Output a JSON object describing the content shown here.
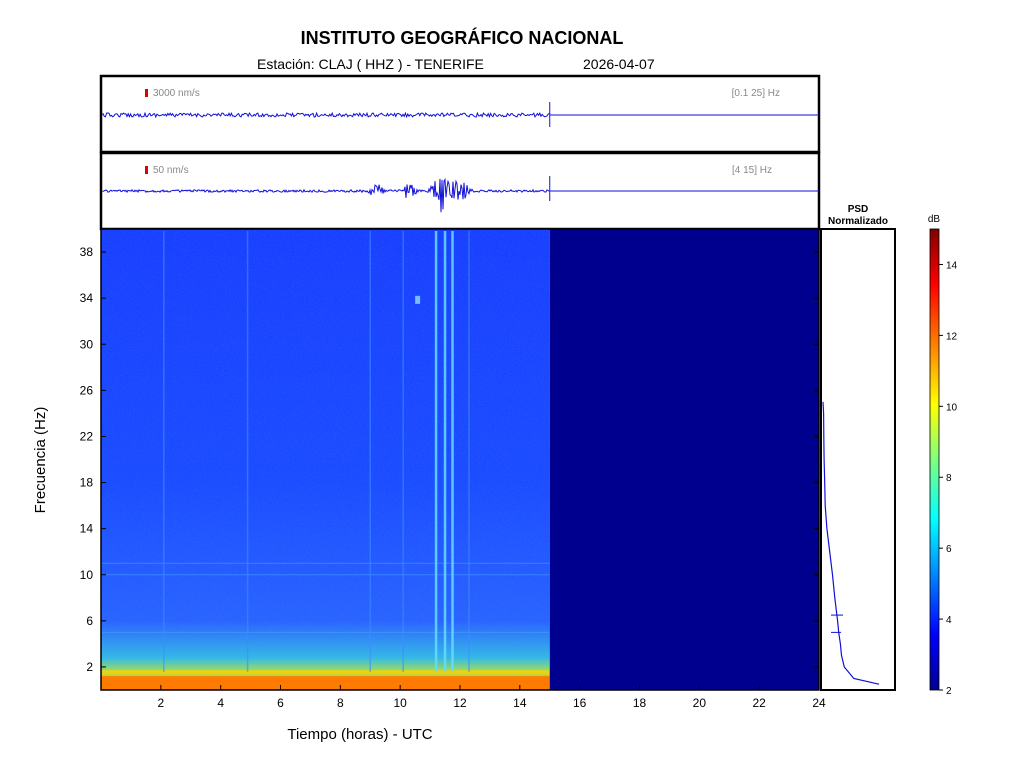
{
  "header": {
    "institution": "INSTITUTO GEOGRÁFICO NACIONAL",
    "station_label": "Estación:  CLAJ ( HHZ ) - TENERIFE",
    "date": "2026-04-07"
  },
  "chart_data": [
    {
      "type": "line",
      "panel": "broadband-seismogram",
      "scale_label": "3000 nm/s",
      "band_label": "[0.1 25] Hz",
      "x": [
        0,
        15
      ],
      "trace": "low-amplitude steady noise; recording ends at 15 h UTC",
      "data_end_hour": 15,
      "xlim": [
        0,
        24
      ]
    },
    {
      "type": "line",
      "panel": "filtered-seismogram",
      "scale_label": "50 nm/s",
      "band_label": "[4 15] Hz",
      "bursts_hours": [
        9.2,
        10.3,
        11.2,
        11.5,
        11.8,
        12.1
      ],
      "peak_hour": 11.4,
      "data_end_hour": 15,
      "xlim": [
        0,
        24
      ]
    },
    {
      "type": "heatmap",
      "panel": "spectrogram",
      "xlabel": "Tiempo (horas) - UTC",
      "ylabel": "Frecuencia  (Hz)",
      "xlim": [
        0,
        24
      ],
      "ylim": [
        0,
        40
      ],
      "x_ticks": [
        "2",
        "4",
        "6",
        "8",
        "10",
        "12",
        "14",
        "16",
        "18",
        "20",
        "22",
        "24"
      ],
      "y_ticks": [
        "2",
        "6",
        "10",
        "14",
        "18",
        "22",
        "26",
        "30",
        "34",
        "38"
      ],
      "data_end_hour": 15,
      "background_db": 4,
      "low_freq_band_hz": [
        0,
        1.2
      ],
      "low_freq_db": 12,
      "vertical_events_hours": [
        2.1,
        4.9,
        9.0,
        10.1,
        11.2,
        11.5,
        11.75,
        12.3
      ],
      "colorscale": [
        "#00008f",
        "#0000ff",
        "#0080ff",
        "#00ffff",
        "#80ff80",
        "#ffff00",
        "#ff8000",
        "#ff0000",
        "#800000"
      ]
    },
    {
      "type": "line",
      "panel": "normalized-psd",
      "title": "PSD\nNormalizado",
      "title_line1": "PSD",
      "title_line2": "Normalizado",
      "freq_hz": [
        0.5,
        1,
        2,
        3,
        4,
        5,
        6,
        8,
        10,
        12,
        14,
        16,
        18,
        20,
        22,
        24,
        25
      ],
      "psd_norm": [
        1.0,
        0.55,
        0.38,
        0.33,
        0.31,
        0.28,
        0.26,
        0.21,
        0.17,
        0.12,
        0.07,
        0.04,
        0.03,
        0.02,
        0.015,
        0.01,
        0.0
      ]
    },
    {
      "type": "heatmap",
      "panel": "colorbar",
      "unit": "dB",
      "range": [
        2,
        15
      ],
      "ticks": [
        "2",
        "4",
        "6",
        "8",
        "10",
        "12",
        "14"
      ]
    }
  ]
}
